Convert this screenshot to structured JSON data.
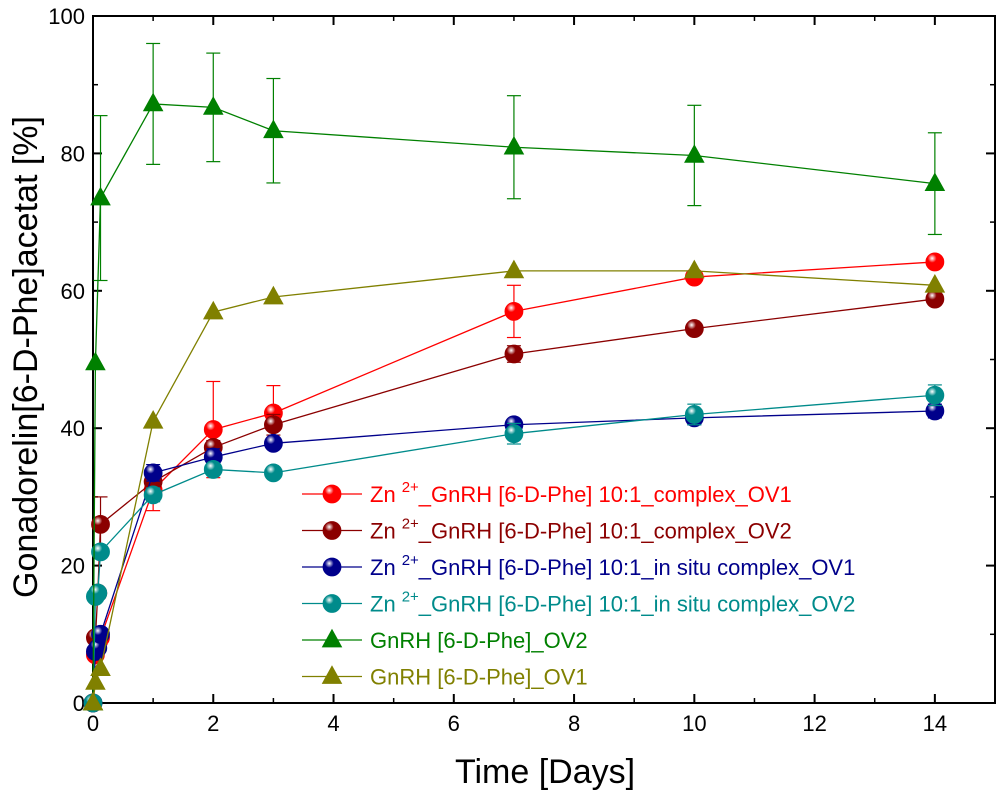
{
  "chart_data": {
    "type": "line",
    "xlabel": "Time [Days]",
    "ylabel": "Gonadorelin[6-D-Phe]acetat [%]",
    "xlim": [
      0,
      15
    ],
    "ylim": [
      0,
      100
    ],
    "x_ticks": [
      0,
      2,
      4,
      6,
      8,
      10,
      12,
      14
    ],
    "x_tick_labels": [
      "0",
      "2",
      "4",
      "6",
      "8",
      "10",
      "12",
      "14"
    ],
    "y_ticks": [
      0,
      20,
      40,
      60,
      80,
      100
    ],
    "y_tick_labels": [
      "0",
      "20",
      "40",
      "60",
      "80",
      "100"
    ],
    "legend_position": "lower-right",
    "series": [
      {
        "name_main": "Zn",
        "name_sup": "2+",
        "name_rest": "_GnRH [6-D-Phe] 10:1_complex_OV1",
        "color": "#ff0000",
        "marker": "circle",
        "x": [
          0,
          0.04,
          0.08,
          0.125,
          1,
          2,
          3,
          7,
          10,
          14
        ],
        "y": [
          0,
          7,
          9,
          9.5,
          31,
          39.8,
          42.2,
          57,
          62,
          64.2
        ],
        "err": [
          0,
          0.5,
          0.5,
          1,
          3,
          7,
          4,
          3.8,
          0.8,
          0.8
        ]
      },
      {
        "name_main": "Zn",
        "name_sup": "2+",
        "name_rest": "_GnRH [6-D-Phe] 10:1_complex_OV2",
        "color": "#8b0000",
        "marker": "circle",
        "x": [
          0,
          0.04,
          0.08,
          0.125,
          1,
          2,
          3,
          7,
          10,
          14
        ],
        "y": [
          0,
          9.5,
          16,
          26,
          32.2,
          37.2,
          40.5,
          50.8,
          54.5,
          58.8
        ],
        "err": [
          0,
          0.5,
          0.5,
          4,
          1,
          1,
          1.5,
          1.2,
          0.5,
          0.8
        ]
      },
      {
        "name_main": "Zn",
        "name_sup": "2+",
        "name_rest": "_GnRH [6-D-Phe] 10:1_in situ complex_OV1",
        "color": "#00008b",
        "marker": "circle",
        "x": [
          0,
          0.04,
          0.08,
          0.125,
          1,
          2,
          3,
          7,
          10,
          14
        ],
        "y": [
          0,
          7.5,
          8,
          10,
          33.5,
          35.8,
          37.8,
          40.5,
          41.5,
          42.5
        ],
        "err": [
          0,
          0.5,
          0.5,
          0.8,
          1.2,
          1.2,
          0.8,
          0.8,
          1,
          1
        ]
      },
      {
        "name_main": "Zn",
        "name_sup": "2+",
        "name_rest": "_GnRH [6-D-Phe] 10:1_in situ complex_OV2",
        "color": "#008b8b",
        "marker": "circle",
        "x": [
          0,
          0.04,
          0.08,
          0.125,
          1,
          2,
          3,
          7,
          10,
          14
        ],
        "y": [
          0,
          15.5,
          16,
          22,
          30.3,
          34,
          33.5,
          39.2,
          42,
          44.8
        ],
        "err": [
          0,
          0.5,
          0.5,
          0.8,
          1,
          0.8,
          0.8,
          1.5,
          1.5,
          1.5
        ]
      },
      {
        "name_main": "GnRH [6-D-Phe]_OV2",
        "name_sup": "",
        "name_rest": "",
        "color": "#008000",
        "marker": "triangle",
        "x": [
          0,
          0.04,
          0.125,
          1,
          2,
          3,
          7,
          10,
          14
        ],
        "y": [
          0,
          49.5,
          73.5,
          87.2,
          86.7,
          83.3,
          80.9,
          79.7,
          75.6
        ],
        "err": [
          0,
          0,
          12,
          8.8,
          7.9,
          7.6,
          7.5,
          7.3,
          7.4
        ]
      },
      {
        "name_main": "GnRH [6-D-Phe]_OV1",
        "name_sup": "",
        "name_rest": "",
        "color": "#808000",
        "marker": "triangle",
        "x": [
          0,
          0.04,
          0.125,
          1,
          2,
          3,
          7,
          10,
          14
        ],
        "y": [
          0,
          3,
          5,
          41,
          56.9,
          59.1,
          62.9,
          62.9,
          60.8
        ],
        "err": [
          0,
          0,
          0,
          0,
          0,
          0,
          0,
          0,
          0
        ]
      }
    ]
  }
}
